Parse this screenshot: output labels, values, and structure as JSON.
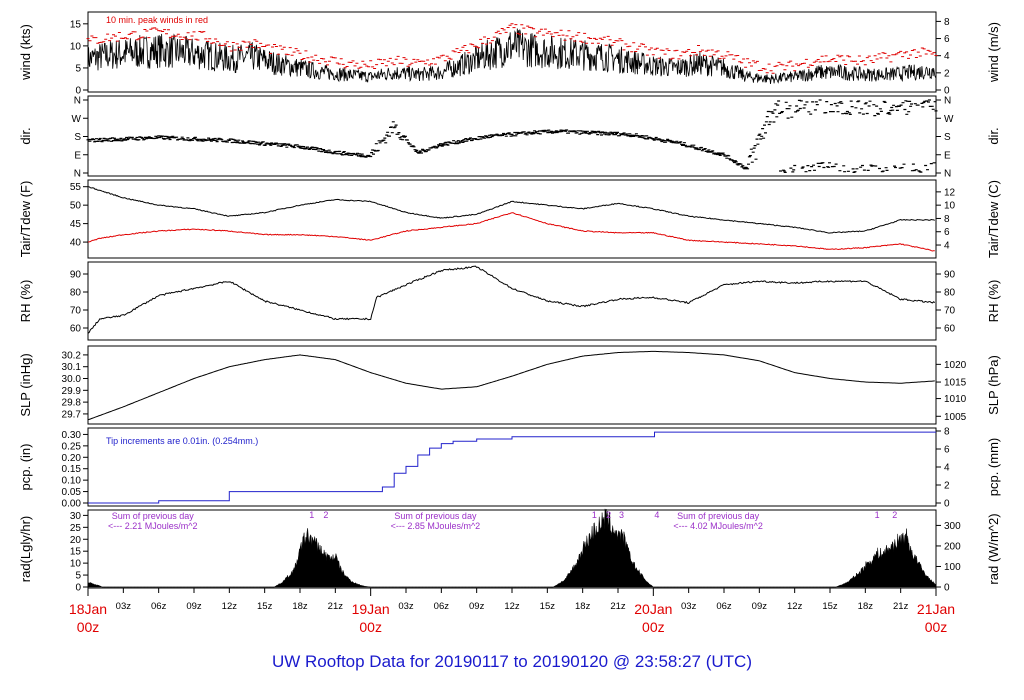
{
  "title": "UW Rooftop Data for 20190117  to  20190120 @ 23:58:27  (UTC)",
  "colors": {
    "title": "#1a1acd",
    "dates": "#e00000",
    "peak": "#e00000",
    "dew": "#e00000",
    "precip": "#2222cc",
    "solar": "#9b30c8",
    "axis": "#000000"
  },
  "chart_data": {
    "type": "line",
    "x_range_hours": [
      0,
      72
    ],
    "time_axis": {
      "hour_labels": [
        "03z",
        "06z",
        "09z",
        "12z",
        "15z",
        "18z",
        "21z",
        "",
        "03z",
        "06z",
        "09z",
        "12z",
        "15z",
        "18z",
        "21z",
        "",
        "03z",
        "06z",
        "09z",
        "12z",
        "15z",
        "18z",
        "21z"
      ],
      "date_labels": [
        {
          "hour": 0,
          "date": "18Jan",
          "time": "00z"
        },
        {
          "hour": 24,
          "date": "19Jan",
          "time": "00z"
        },
        {
          "hour": 48,
          "date": "20Jan",
          "time": "00z"
        },
        {
          "hour": 72,
          "date": "21Jan",
          "time": "00z"
        }
      ]
    },
    "panels": [
      {
        "id": "wind",
        "left_label": "wind (kts)",
        "right_label": "wind (m/s)",
        "ylim": [
          0,
          17
        ],
        "left_ticks": [
          "0",
          "5",
          "10",
          "15"
        ],
        "left_tick_values": [
          0,
          5,
          10,
          15
        ],
        "right_ticks": [
          "0",
          "2",
          "4",
          "6",
          "8"
        ],
        "right_tick_values": [
          0,
          3.89,
          7.78,
          11.66,
          15.55
        ],
        "annotation": "10 min. peak winds in red",
        "series": [
          {
            "name": "wind speed",
            "x": [
              0,
              2,
              4,
              6,
              8,
              10,
              12,
              14,
              16,
              18,
              20,
              22,
              24,
              26,
              28,
              30,
              32,
              34,
              36,
              38,
              40,
              42,
              44,
              46,
              48,
              50,
              52,
              54,
              56,
              58,
              60,
              62,
              64,
              66,
              68,
              70,
              72
            ],
            "values": [
              7,
              8,
              8.5,
              9,
              8.5,
              8,
              7,
              7.5,
              6,
              5,
              4,
              3.5,
              3,
              4,
              3.5,
              4,
              6,
              8,
              10,
              9,
              8.5,
              8,
              7.5,
              6.5,
              5.5,
              5,
              6,
              5,
              3,
              2.5,
              3,
              4,
              4,
              3.5,
              3.5,
              4,
              4.5
            ]
          },
          {
            "name": "10 min. peak",
            "x": [
              0,
              2,
              4,
              6,
              8,
              10,
              12,
              14,
              16,
              18,
              20,
              22,
              24,
              26,
              28,
              30,
              32,
              34,
              36,
              38,
              40,
              42,
              44,
              46,
              48,
              50,
              52,
              54,
              56,
              58,
              60,
              62,
              64,
              66,
              68,
              70,
              72
            ],
            "values": [
              11,
              12,
              12.5,
              13,
              12.5,
              12,
              10,
              10.5,
              9,
              8,
              7,
              6,
              5.5,
              6.5,
              6,
              7,
              9,
              11.5,
              14,
              13,
              12.5,
              12,
              11,
              10,
              8.5,
              8,
              9,
              8,
              6,
              5,
              5.5,
              7,
              7,
              6.5,
              7.5,
              8.5,
              8
            ]
          }
        ]
      },
      {
        "id": "dir",
        "left_label": "dir.",
        "right_label": "dir.",
        "ylim": [
          0,
          360
        ],
        "left_ticks": [
          "N",
          "E",
          "S",
          "W",
          "N"
        ],
        "left_tick_values": [
          0,
          90,
          180,
          270,
          360
        ],
        "right_ticks": [
          "N",
          "E",
          "S",
          "W",
          "N"
        ],
        "right_tick_values": [
          0,
          90,
          180,
          270,
          360
        ],
        "series": [
          {
            "name": "wind direction",
            "x": [
              0,
              2,
              4,
              6,
              8,
              10,
              12,
              14,
              16,
              18,
              20,
              22,
              24,
              26,
              28,
              30,
              32,
              34,
              36,
              38,
              40,
              42,
              44,
              46,
              48,
              50,
              52,
              54,
              56,
              58,
              60,
              62,
              64,
              66,
              68,
              70,
              72
            ],
            "values": [
              160,
              165,
              170,
              175,
              170,
              165,
              160,
              150,
              140,
              130,
              110,
              95,
              85,
              230,
              100,
              140,
              160,
              180,
              190,
              200,
              205,
              200,
              195,
              190,
              170,
              150,
              120,
              90,
              20,
              300,
              340,
              355,
              350,
              340,
              345,
              350,
              355
            ]
          }
        ]
      },
      {
        "id": "temp",
        "left_label": "Tair/Tdew (F)",
        "right_label": "Tair/Tdew (C)",
        "ylim": [
          36.5,
          56
        ],
        "left_ticks": [
          "40",
          "45",
          "50",
          "55"
        ],
        "left_tick_values": [
          40,
          45,
          50,
          55
        ],
        "right_ticks": [
          "4",
          "6",
          "8",
          "10",
          "12"
        ],
        "right_tick_values": [
          39.2,
          42.8,
          46.4,
          50.0,
          53.6
        ],
        "series": [
          {
            "name": "Tair",
            "x": [
              0,
              1,
              3,
              6,
              9,
              12,
              15,
              18,
              21,
              24,
              27,
              30,
              33,
              36,
              39,
              42,
              45,
              48,
              51,
              54,
              57,
              60,
              63,
              66,
              69,
              72
            ],
            "values": [
              55,
              54,
              52,
              50,
              49,
              47,
              48,
              50,
              51.5,
              51,
              48,
              46.5,
              47.5,
              51,
              50,
              49,
              50.5,
              49,
              47,
              46,
              45,
              44,
              42.5,
              43,
              46,
              46
            ]
          },
          {
            "name": "Tdew",
            "x": [
              0,
              1,
              3,
              6,
              9,
              12,
              15,
              18,
              21,
              24,
              27,
              30,
              33,
              36,
              39,
              42,
              45,
              48,
              51,
              54,
              57,
              60,
              63,
              66,
              69,
              72
            ],
            "values": [
              40,
              41,
              42,
              43,
              43.5,
              43,
              42,
              42,
              41.5,
              40.5,
              43,
              44,
              45,
              48,
              45,
              43,
              42.5,
              42.5,
              40.5,
              40,
              39.5,
              39,
              38,
              38.5,
              39.5,
              37.5
            ]
          }
        ]
      },
      {
        "id": "rh",
        "left_label": "RH (%)",
        "right_label": "RH (%)",
        "ylim": [
          55,
          95
        ],
        "left_ticks": [
          "60",
          "70",
          "80",
          "90"
        ],
        "left_tick_values": [
          60,
          70,
          80,
          90
        ],
        "right_ticks": [
          "60",
          "70",
          "80",
          "90"
        ],
        "right_tick_values": [
          60,
          70,
          80,
          90
        ],
        "series": [
          {
            "name": "RH",
            "x": [
              0,
              1,
              3,
              6,
              9,
              12,
              15,
              18,
              21,
              24,
              24.5,
              27,
              30,
              33,
              36,
              39,
              42,
              45,
              48,
              51,
              54,
              57,
              60,
              63,
              66,
              69,
              72
            ],
            "values": [
              57,
              65,
              67,
              78,
              82,
              86,
              75,
              70,
              65,
              65,
              77,
              84,
              92,
              94,
              82,
              75,
              72,
              76,
              77,
              74,
              84,
              86,
              85,
              86,
              86,
              76,
              74
            ]
          }
        ]
      },
      {
        "id": "slp",
        "left_label": "SLP (inHg)",
        "right_label": "SLP (hPa)",
        "ylim": [
          29.64,
          30.25
        ],
        "left_ticks": [
          "29.7",
          "29.8",
          "29.9",
          "30.0",
          "30.1",
          "30.2"
        ],
        "left_tick_values": [
          29.7,
          29.8,
          29.9,
          30.0,
          30.1,
          30.2
        ],
        "right_ticks": [
          "1005",
          "1010",
          "1015",
          "1020"
        ],
        "right_tick_values": [
          29.68,
          29.83,
          29.97,
          30.12
        ],
        "series": [
          {
            "name": "SLP",
            "x": [
              0,
              3,
              6,
              9,
              12,
              15,
              18,
              21,
              24,
              27,
              30,
              33,
              36,
              39,
              42,
              45,
              48,
              51,
              54,
              57,
              60,
              63,
              66,
              69,
              72
            ],
            "values": [
              29.65,
              29.76,
              29.88,
              30.0,
              30.1,
              30.16,
              30.2,
              30.16,
              30.05,
              29.96,
              29.91,
              29.93,
              30.02,
              30.12,
              30.19,
              30.22,
              30.23,
              30.22,
              30.2,
              30.15,
              30.05,
              30.0,
              29.97,
              29.96,
              29.98
            ]
          }
        ]
      },
      {
        "id": "pcp",
        "left_label": "pcp. (in)",
        "right_label": "pcp. (mm)",
        "ylim": [
          0,
          0.315
        ],
        "left_ticks": [
          "0.00",
          "0.05",
          "0.10",
          "0.15",
          "0.20",
          "0.25",
          "0.30"
        ],
        "left_tick_values": [
          0,
          0.05,
          0.1,
          0.15,
          0.2,
          0.25,
          0.3
        ],
        "right_ticks": [
          "0",
          "2",
          "4",
          "6",
          "8"
        ],
        "right_tick_values": [
          0,
          0.0787,
          0.1575,
          0.2362,
          0.315
        ],
        "annotation": "Tip increments are 0.01in. (0.254mm.)",
        "series": [
          {
            "name": "cumulative precip",
            "x": [
              0,
              6,
              12,
              24,
              25,
              26,
              27,
              28,
              29,
              30,
              31,
              33,
              36,
              40,
              48,
              48.1,
              72
            ],
            "values": [
              0,
              0.01,
              0.05,
              0.05,
              0.07,
              0.13,
              0.16,
              0.21,
              0.24,
              0.26,
              0.27,
              0.28,
              0.29,
              0.29,
              0.29,
              0.31,
              0.31
            ]
          }
        ]
      },
      {
        "id": "rad",
        "left_label": "rad(Lgly/hr)",
        "right_label": "rad (W/m^2)",
        "ylim": [
          0,
          31
        ],
        "left_ticks": [
          "0",
          "5",
          "10",
          "15",
          "20",
          "25",
          "30"
        ],
        "left_tick_values": [
          0,
          5,
          10,
          15,
          20,
          25,
          30
        ],
        "right_ticks": [
          "0",
          "100",
          "200",
          "300"
        ],
        "right_tick_values": [
          0,
          8.6,
          17.2,
          25.8
        ],
        "annotations": [
          {
            "hour": 5.5,
            "line1": "Sum of previous day",
            "line2": "<--- 2.21 MJoules/m^2"
          },
          {
            "hour": 29.5,
            "line1": "Sum of previous day",
            "line2": "<--- 2.85 MJoules/m^2"
          },
          {
            "hour": 53.5,
            "line1": "Sum of previous day",
            "line2": "<--- 4.02 MJoules/m^2"
          }
        ],
        "markers": [
          {
            "hour": 19.0,
            "label": "1"
          },
          {
            "hour": 20.2,
            "label": "2"
          },
          {
            "hour": 43.0,
            "label": "1"
          },
          {
            "hour": 44.2,
            "label": "2"
          },
          {
            "hour": 45.3,
            "label": "3"
          },
          {
            "hour": 48.3,
            "label": "4"
          },
          {
            "hour": 67.0,
            "label": "1"
          },
          {
            "hour": 68.5,
            "label": "2"
          }
        ],
        "series": [
          {
            "name": "solar radiation",
            "x": [
              0,
              1,
              1.2,
              15.8,
              16.5,
              17.5,
              18,
              18.5,
              19,
              19.5,
              20,
              20.5,
              21,
              21.5,
              22,
              22.5,
              23,
              23.5,
              24,
              39.5,
              40.5,
              41.5,
              42,
              42.5,
              43,
              43.5,
              44,
              44.5,
              45,
              45.5,
              46,
              46.5,
              47,
              47.5,
              48,
              63.5,
              64.5,
              65.5,
              66,
              66.5,
              67,
              67.5,
              68,
              68.5,
              69,
              69.5,
              70,
              70.5,
              71,
              71.5,
              72
            ],
            "values": [
              2,
              0.5,
              0,
              0,
              2,
              7,
              15,
              22,
              20,
              17,
              14,
              12,
              13,
              7,
              4,
              2,
              1,
              0.3,
              0,
              0,
              3,
              10,
              16,
              20,
              24,
              26,
              29,
              25,
              22,
              20,
              13,
              8,
              5,
              2,
              0,
              0,
              2,
              6,
              9,
              11,
              14,
              14,
              16,
              18,
              20,
              21,
              14,
              10,
              6,
              3,
              1
            ]
          }
        ]
      }
    ]
  }
}
